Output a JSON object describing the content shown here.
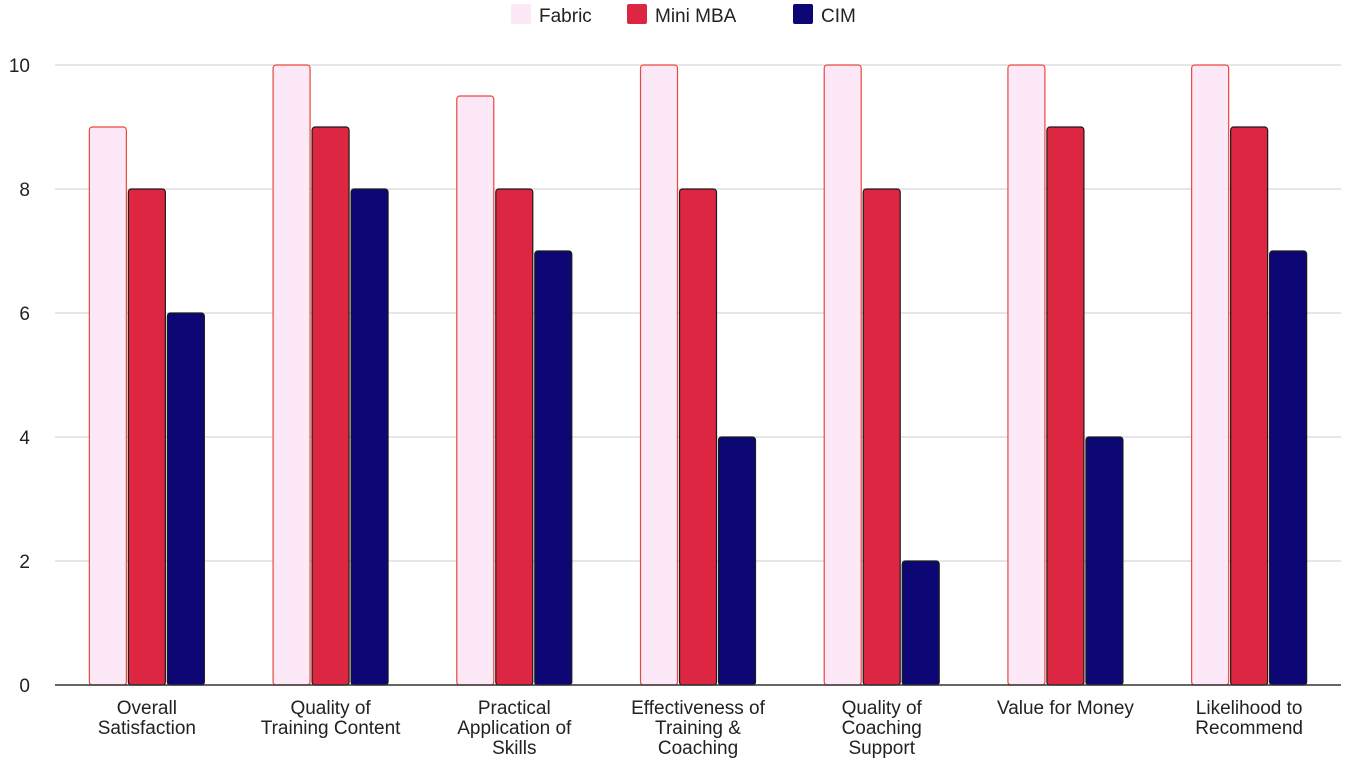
{
  "chart_data": {
    "type": "bar",
    "title": "",
    "xlabel": "",
    "ylabel": "",
    "ylim": [
      0,
      10
    ],
    "y_ticks": [
      "0",
      "2",
      "4",
      "6",
      "8",
      "10"
    ],
    "grid": true,
    "legend_position": "top-center",
    "categories": [
      [
        "Overall",
        "Satisfaction"
      ],
      [
        "Quality of",
        "Training Content"
      ],
      [
        "Practical",
        "Application of",
        "Skills"
      ],
      [
        "Effectiveness of",
        "Training &",
        "Coaching"
      ],
      [
        "Quality of",
        "Coaching",
        "Support"
      ],
      [
        "Value for Money"
      ],
      [
        "Likelihood to",
        "Recommend"
      ]
    ],
    "series": [
      {
        "name": "Fabric",
        "color": "#fde8f8",
        "stroke": "#e8493c",
        "values": [
          9,
          10,
          9.5,
          10,
          10,
          10,
          10
        ]
      },
      {
        "name": "Mini MBA",
        "color": "#dc2642",
        "stroke": "#1a1a1a",
        "values": [
          8,
          9,
          8,
          8,
          8,
          9,
          9
        ]
      },
      {
        "name": "CIM",
        "color": "#0c0775",
        "stroke": "#1a1a1a",
        "values": [
          6,
          8,
          7,
          4,
          2,
          4,
          7
        ]
      }
    ]
  }
}
